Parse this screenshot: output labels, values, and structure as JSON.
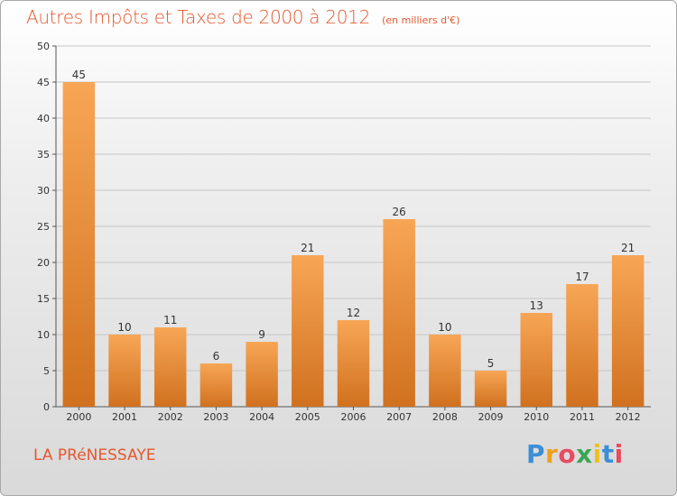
{
  "header": {
    "title": "Autres Impôts et Taxes de 2000 à 2012",
    "unit": "(en milliers d'€)"
  },
  "footer": {
    "commune": "LA PRéNESSAYE",
    "logo": "Proxiti",
    "logo_colors": [
      "#3a8fd6",
      "#f0a020",
      "#e84a5f",
      "#3aa655",
      "#f0c020",
      "#3a8fd6",
      "#e84a5f"
    ]
  },
  "colors": {
    "bar_light": "#f7a656",
    "bar_dark": "#d0711f",
    "grid": "#c6c6c6",
    "axis": "#555555"
  },
  "chart_data": {
    "type": "bar",
    "categories": [
      "2000",
      "2001",
      "2002",
      "2003",
      "2004",
      "2005",
      "2006",
      "2007",
      "2008",
      "2009",
      "2010",
      "2011",
      "2012"
    ],
    "values": [
      45,
      10,
      11,
      6,
      9,
      21,
      12,
      26,
      10,
      5,
      13,
      17,
      21
    ],
    "title": "Autres Impôts et Taxes de 2000 à 2012",
    "subtitle": "(en milliers d'€)",
    "xlabel": "",
    "ylabel": "",
    "ylim": [
      0,
      50
    ],
    "yticks": [
      0,
      5,
      10,
      15,
      20,
      25,
      30,
      35,
      40,
      45,
      50
    ],
    "grid": true,
    "data_labels": true
  }
}
